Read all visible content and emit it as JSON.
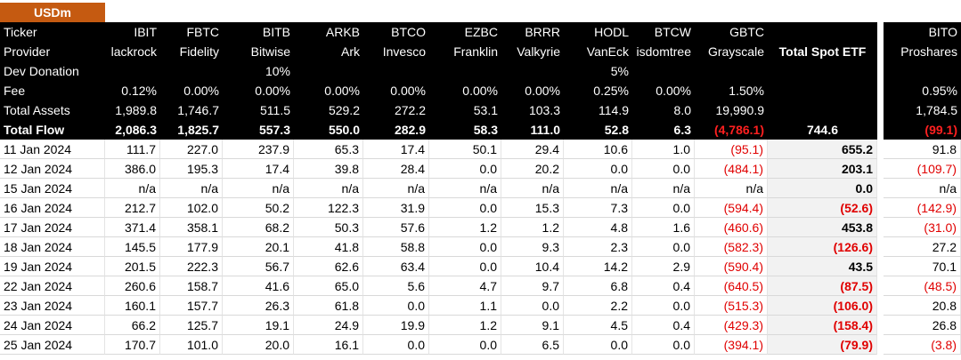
{
  "header": {
    "corner": "USDm"
  },
  "table": {
    "rows": [
      [
        "Ticker",
        "IBIT",
        "FBTC",
        "BITB",
        "ARKB",
        "BTCO",
        "EZBC",
        "BRRR",
        "HODL",
        "BTCW",
        "GBTC",
        null,
        "BITO"
      ],
      [
        "Provider",
        "lackrock",
        "Fidelity",
        "Bitwise",
        "Ark",
        "Invesco",
        "Franklin",
        "Valkyrie",
        "VanEck",
        "isdomtree",
        "Grayscale",
        "Total Spot ETF",
        "Proshares"
      ],
      [
        "Dev Donation",
        null,
        null,
        "10%",
        null,
        null,
        null,
        null,
        "5%",
        null,
        null,
        null,
        null
      ],
      [
        "Fee",
        "0.12%",
        "0.00%",
        "0.00%",
        "0.00%",
        "0.00%",
        "0.00%",
        "0.00%",
        "0.25%",
        "0.00%",
        "1.50%",
        null,
        "0.95%"
      ],
      [
        "Total Assets",
        "1,989.8",
        "1,746.7",
        "511.5",
        "529.2",
        "272.2",
        "53.1",
        "103.3",
        "114.9",
        "8.0",
        "19,990.9",
        null,
        "1,784.5"
      ],
      [
        "Total Flow",
        "2,086.3",
        "1,825.7",
        "557.3",
        "550.0",
        "282.9",
        "58.3",
        "111.0",
        "52.8",
        "6.3",
        "(4,786.1)",
        "744.6",
        "(99.1)"
      ],
      [
        "11 Jan 2024",
        "111.7",
        "227.0",
        "237.9",
        "65.3",
        "17.4",
        "50.1",
        "29.4",
        "10.6",
        "1.0",
        "(95.1)",
        "655.2",
        "91.8"
      ],
      [
        "12 Jan 2024",
        "386.0",
        "195.3",
        "17.4",
        "39.8",
        "28.4",
        "0.0",
        "20.2",
        "0.0",
        "0.0",
        "(484.1)",
        "203.1",
        "(109.7)"
      ],
      [
        "15 Jan 2024",
        "n/a",
        "n/a",
        "n/a",
        "n/a",
        "n/a",
        "n/a",
        "n/a",
        "n/a",
        "n/a",
        "n/a",
        "0.0",
        "n/a"
      ],
      [
        "16 Jan 2024",
        "212.7",
        "102.0",
        "50.2",
        "122.3",
        "31.9",
        "0.0",
        "15.3",
        "7.3",
        "0.0",
        "(594.4)",
        "(52.6)",
        "(142.9)"
      ],
      [
        "17 Jan 2024",
        "371.4",
        "358.1",
        "68.2",
        "50.3",
        "57.6",
        "1.2",
        "1.2",
        "4.8",
        "1.6",
        "(460.6)",
        "453.8",
        "(31.0)"
      ],
      [
        "18 Jan 2024",
        "145.5",
        "177.9",
        "20.1",
        "41.8",
        "58.8",
        "0.0",
        "9.3",
        "2.3",
        "0.0",
        "(582.3)",
        "(126.6)",
        "27.2"
      ],
      [
        "19 Jan 2024",
        "201.5",
        "222.3",
        "56.7",
        "62.6",
        "63.4",
        "0.0",
        "10.4",
        "14.2",
        "2.9",
        "(590.4)",
        "43.5",
        "70.1"
      ],
      [
        "22 Jan 2024",
        "260.6",
        "158.7",
        "41.6",
        "65.0",
        "5.6",
        "4.7",
        "9.7",
        "6.8",
        "0.4",
        "(640.5)",
        "(87.5)",
        "(48.5)"
      ],
      [
        "23 Jan 2024",
        "160.1",
        "157.7",
        "26.3",
        "61.8",
        "0.0",
        "1.1",
        "0.0",
        "2.2",
        "0.0",
        "(515.3)",
        "(106.0)",
        "20.8"
      ],
      [
        "24 Jan 2024",
        "66.2",
        "125.7",
        "19.1",
        "24.9",
        "19.9",
        "1.2",
        "9.1",
        "4.5",
        "0.4",
        "(429.3)",
        "(158.4)",
        "26.8"
      ],
      [
        "25 Jan 2024",
        "170.7",
        "101.0",
        "20.0",
        "16.1",
        "0.0",
        "0.0",
        "6.5",
        "0.0",
        "0.0",
        "(394.1)",
        "(79.9)",
        "(3.8)"
      ]
    ]
  }
}
